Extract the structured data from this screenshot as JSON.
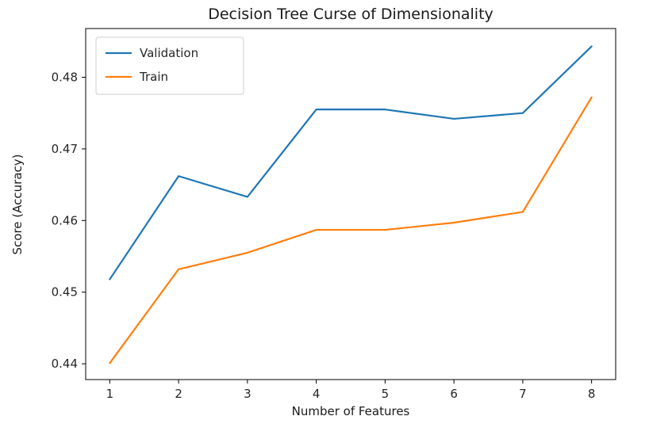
{
  "chart_data": {
    "type": "line",
    "title": "Decision Tree Curse of Dimensionality",
    "xlabel": "Number of Features",
    "ylabel": "Score (Accuracy)",
    "x": [
      1,
      2,
      3,
      4,
      5,
      6,
      7,
      8
    ],
    "xticks": [
      1,
      2,
      3,
      4,
      5,
      6,
      7,
      8
    ],
    "yticks": [
      0.44,
      0.45,
      0.46,
      0.47,
      0.48
    ],
    "xlim": [
      0.65,
      8.35
    ],
    "ylim": [
      0.4378,
      0.4868
    ],
    "grid": false,
    "legend_position": "upper left",
    "series": [
      {
        "name": "Validation",
        "color": "#1f77b4",
        "values": [
          0.4518,
          0.4662,
          0.4633,
          0.4755,
          0.4755,
          0.4742,
          0.475,
          0.4843
        ]
      },
      {
        "name": "Train",
        "color": "#ff7f0e",
        "values": [
          0.4401,
          0.4532,
          0.4555,
          0.4587,
          0.4587,
          0.4597,
          0.4612,
          0.4772
        ]
      }
    ]
  }
}
